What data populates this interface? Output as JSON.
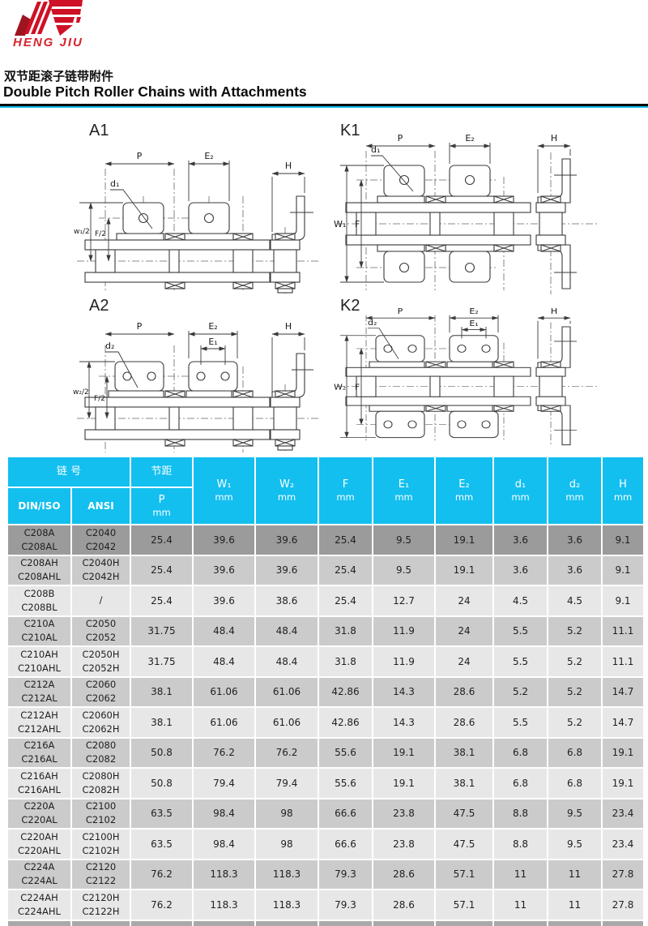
{
  "brand": {
    "name": "HENG JIU",
    "logo_red": "#CE1126",
    "logo_dark_red": "#9E1520"
  },
  "page": {
    "title_zh": "双节距滚子链带附件",
    "title_en": "Double Pitch Roller Chains with Attachments",
    "accent_color": "#12BFEF"
  },
  "diagrams": [
    {
      "id": "A1",
      "title": "A1",
      "labels": {
        "p": "P",
        "e2": "E₂",
        "h": "H",
        "d": "d₁",
        "w": "w₁/2",
        "f": "F/2"
      }
    },
    {
      "id": "K1",
      "title": "K1",
      "labels": {
        "p": "P",
        "e2": "E₂",
        "h": "H",
        "d": "d₁",
        "w": "W₁",
        "f": "F"
      }
    },
    {
      "id": "A2",
      "title": "A2",
      "labels": {
        "p": "P",
        "e2": "E₂",
        "e1": "E₁",
        "h": "H",
        "d": "d₂",
        "w": "w₂/2",
        "f": "F/2"
      }
    },
    {
      "id": "K2",
      "title": "K2",
      "labels": {
        "p": "P",
        "e2": "E₂",
        "e1": "E₁",
        "h": "H",
        "d": "d₂",
        "w": "W₂",
        "f": "F"
      }
    }
  ],
  "table": {
    "colors": {
      "header_bg": "#12BFEF",
      "row_highlight": "#9B9B9B",
      "row_medium": "#CBCBCB",
      "row_light": "#E7E7E7"
    },
    "header": {
      "chain_no": "链 号",
      "din_iso": "DIN/ISO",
      "ansi": "ANSI",
      "pitch": "节距",
      "pitch_symbol": "P",
      "unit": "mm",
      "cols": [
        {
          "label": "W₁",
          "unit": "mm"
        },
        {
          "label": "W₂",
          "unit": "mm"
        },
        {
          "label": "F",
          "unit": "mm"
        },
        {
          "label": "E₁",
          "unit": "mm"
        },
        {
          "label": "E₂",
          "unit": "mm"
        },
        {
          "label": "d₁",
          "unit": "mm"
        },
        {
          "label": "d₂",
          "unit": "mm"
        },
        {
          "label": "H",
          "unit": "mm"
        }
      ]
    },
    "rows": [
      {
        "din": [
          "C208A",
          "C208AL"
        ],
        "ansi": [
          "C2040",
          "C2042"
        ],
        "values": [
          "25.4",
          "39.6",
          "39.6",
          "25.4",
          "9.5",
          "19.1",
          "3.6",
          "3.6",
          "9.1"
        ]
      },
      {
        "din": [
          "C208AH",
          "C208AHL"
        ],
        "ansi": [
          "C2040H",
          "C2042H"
        ],
        "values": [
          "25.4",
          "39.6",
          "39.6",
          "25.4",
          "9.5",
          "19.1",
          "3.6",
          "3.6",
          "9.1"
        ]
      },
      {
        "din": [
          "C208B",
          "C208BL"
        ],
        "ansi": [
          "/"
        ],
        "values": [
          "25.4",
          "39.6",
          "38.6",
          "25.4",
          "12.7",
          "24",
          "4.5",
          "4.5",
          "9.1"
        ]
      },
      {
        "din": [
          "C210A",
          "C210AL"
        ],
        "ansi": [
          "C2050",
          "C2052"
        ],
        "values": [
          "31.75",
          "48.4",
          "48.4",
          "31.8",
          "11.9",
          "24",
          "5.5",
          "5.2",
          "11.1"
        ]
      },
      {
        "din": [
          "C210AH",
          "C210AHL"
        ],
        "ansi": [
          "C2050H",
          "C2052H"
        ],
        "values": [
          "31.75",
          "48.4",
          "48.4",
          "31.8",
          "11.9",
          "24",
          "5.5",
          "5.2",
          "11.1"
        ]
      },
      {
        "din": [
          "C212A",
          "C212AL"
        ],
        "ansi": [
          "C2060",
          "C2062"
        ],
        "values": [
          "38.1",
          "61.06",
          "61.06",
          "42.86",
          "14.3",
          "28.6",
          "5.2",
          "5.2",
          "14.7"
        ]
      },
      {
        "din": [
          "C212AH",
          "C212AHL"
        ],
        "ansi": [
          "C2060H",
          "C2062H"
        ],
        "values": [
          "38.1",
          "61.06",
          "61.06",
          "42.86",
          "14.3",
          "28.6",
          "5.5",
          "5.2",
          "14.7"
        ]
      },
      {
        "din": [
          "C216A",
          "C216AL"
        ],
        "ansi": [
          "C2080",
          "C2082"
        ],
        "values": [
          "50.8",
          "76.2",
          "76.2",
          "55.6",
          "19.1",
          "38.1",
          "6.8",
          "6.8",
          "19.1"
        ]
      },
      {
        "din": [
          "C216AH",
          "C216AHL"
        ],
        "ansi": [
          "C2080H",
          "C2082H"
        ],
        "values": [
          "50.8",
          "79.4",
          "79.4",
          "55.6",
          "19.1",
          "38.1",
          "6.8",
          "6.8",
          "19.1"
        ]
      },
      {
        "din": [
          "C220A",
          "C220AL"
        ],
        "ansi": [
          "C2100",
          "C2102"
        ],
        "values": [
          "63.5",
          "98.4",
          "98",
          "66.6",
          "23.8",
          "47.5",
          "8.8",
          "9.5",
          "23.4"
        ]
      },
      {
        "din": [
          "C220AH",
          "C220AHL"
        ],
        "ansi": [
          "C2100H",
          "C2102H"
        ],
        "values": [
          "63.5",
          "98.4",
          "98",
          "66.6",
          "23.8",
          "47.5",
          "8.8",
          "9.5",
          "23.4"
        ]
      },
      {
        "din": [
          "C224A",
          "C224AL"
        ],
        "ansi": [
          "C2120",
          "C2122"
        ],
        "values": [
          "76.2",
          "118.3",
          "118.3",
          "79.3",
          "28.6",
          "57.1",
          "11",
          "11",
          "27.8"
        ]
      },
      {
        "din": [
          "C224AH",
          "C224AHL"
        ],
        "ansi": [
          "C2120H",
          "C2122H"
        ],
        "values": [
          "76.2",
          "118.3",
          "118.3",
          "79.3",
          "28.6",
          "57.1",
          "11",
          "11",
          "27.8"
        ]
      }
    ]
  }
}
